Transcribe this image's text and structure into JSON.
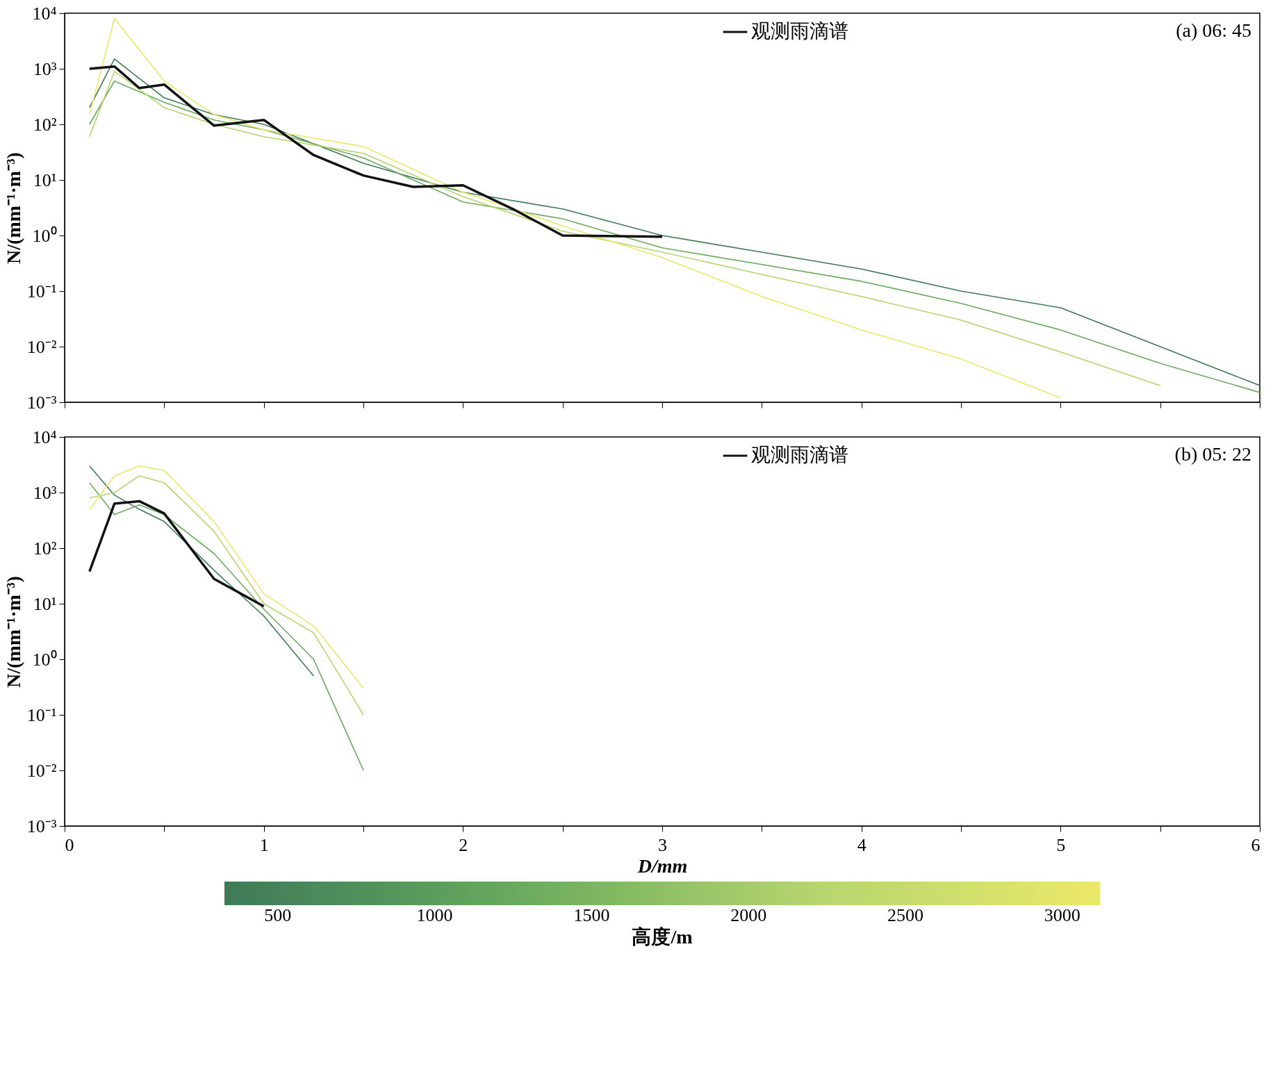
{
  "chart_data": [
    {
      "type": "line",
      "ylabel": "N/(mm⁻¹·m⁻³)",
      "annotations": [
        "(a) 06: 45"
      ],
      "log": "y",
      "grid": false,
      "legend": "top right",
      "tick_labels": "y",
      "line_style": "solid",
      "xlim": [
        0,
        6
      ],
      "xticks": [
        0,
        {
          "value": 0.5,
          "label": null
        },
        1,
        {
          "value": 1.5,
          "label": null
        },
        2,
        {
          "value": 2.5,
          "label": null
        },
        3,
        {
          "value": 3.5,
          "label": null
        },
        4,
        {
          "value": 4.5,
          "label": null
        },
        5,
        {
          "value": 5.5,
          "label": null
        },
        6
      ],
      "ylim": [
        0.001,
        10000
      ],
      "yticks": [
        {
          "value": 0.001,
          "label": "10⁻³"
        },
        {
          "value": 0.01,
          "label": "10⁻²"
        },
        {
          "value": 0.1,
          "label": "10⁻¹"
        },
        {
          "value": 1,
          "label": "10⁰"
        },
        {
          "value": 10,
          "label": "10¹"
        },
        {
          "value": 100,
          "label": "10²"
        },
        {
          "value": 1000,
          "label": "10³"
        },
        {
          "value": 10000,
          "label": "10⁴"
        }
      ],
      "series": [
        {
          "color": "#3f7a57",
          "x": [
            0.125,
            0.25,
            0.5,
            0.75,
            1,
            1.5,
            2,
            2.5,
            3,
            3.5,
            4,
            4.5,
            5,
            5.5,
            6
          ],
          "values": [
            200,
            1500,
            300,
            150,
            100,
            20,
            6,
            3,
            1,
            0.5,
            0.25,
            0.1,
            0.05,
            0.01,
            0.002
          ]
        },
        {
          "color": "#6aaa5e",
          "x": [
            0.125,
            0.25,
            0.5,
            0.75,
            1,
            1.5,
            2,
            2.5,
            3,
            3.5,
            4,
            4.5,
            5,
            5.5,
            6
          ],
          "values": [
            100,
            600,
            250,
            120,
            80,
            25,
            4,
            2,
            0.6,
            0.3,
            0.15,
            0.06,
            0.02,
            0.005,
            0.0015
          ]
        },
        {
          "color": "#b5d46e",
          "x": [
            0.125,
            0.25,
            0.5,
            0.75,
            1,
            1.5,
            2,
            2.5,
            3,
            3.5,
            4,
            4.5,
            5,
            5.5
          ],
          "values": [
            60,
            900,
            200,
            100,
            60,
            30,
            5,
            1.2,
            0.5,
            0.2,
            0.08,
            0.03,
            0.008,
            0.002
          ]
        },
        {
          "color": "#ebe86a",
          "x": [
            0.125,
            0.25,
            0.5,
            0.75,
            1,
            1.5,
            2,
            2.5,
            3,
            3.5,
            4,
            4.5,
            5
          ],
          "values": [
            150,
            8000,
            600,
            150,
            80,
            40,
            6,
            1.5,
            0.4,
            0.08,
            0.02,
            0.006,
            0.0012
          ]
        },
        {
          "name": "观测雨滴谱",
          "color": "#111111",
          "x": [
            0.125,
            0.25,
            0.375,
            0.5,
            0.75,
            1,
            1.25,
            1.5,
            1.75,
            2,
            2.25,
            2.5,
            3
          ],
          "values": [
            1000,
            1100,
            450,
            520,
            95,
            120,
            28,
            12,
            7.5,
            8,
            3,
            1,
            0.95
          ]
        }
      ]
    },
    {
      "type": "line",
      "xlabel": "D/mm",
      "ylabel": "N/(mm⁻¹·m⁻³)",
      "annotations": [
        "(b) 05: 22"
      ],
      "log": "y",
      "grid": false,
      "legend": "top right",
      "line_style": "solid",
      "clabel": "高度/m",
      "clim": [
        330,
        3120
      ],
      "cticks": [
        500,
        1000,
        1500,
        2000,
        2500,
        3000
      ],
      "xlim": [
        0,
        6
      ],
      "xticks": [
        0,
        {
          "value": 0.5,
          "label": null
        },
        1,
        {
          "value": 1.5,
          "label": null
        },
        2,
        {
          "value": 2.5,
          "label": null
        },
        3,
        {
          "value": 3.5,
          "label": null
        },
        4,
        {
          "value": 4.5,
          "label": null
        },
        5,
        {
          "value": 5.5,
          "label": null
        },
        6
      ],
      "ylim": [
        0.001,
        10000
      ],
      "yticks": [
        {
          "value": 0.001,
          "label": "10⁻³"
        },
        {
          "value": 0.01,
          "label": "10⁻²"
        },
        {
          "value": 0.1,
          "label": "10⁻¹"
        },
        {
          "value": 1,
          "label": "10⁰"
        },
        {
          "value": 10,
          "label": "10¹"
        },
        {
          "value": 100,
          "label": "10²"
        },
        {
          "value": 1000,
          "label": "10³"
        },
        {
          "value": 10000,
          "label": "10⁴"
        }
      ],
      "series": [
        {
          "color": "#3f7a57",
          "x": [
            0.125,
            0.25,
            0.375,
            0.5,
            0.75,
            1,
            1.25
          ],
          "values": [
            3000,
            900,
            500,
            300,
            40,
            6,
            0.5
          ]
        },
        {
          "color": "#6aaa5e",
          "x": [
            0.125,
            0.25,
            0.375,
            0.5,
            0.75,
            1,
            1.25,
            1.5
          ],
          "values": [
            1500,
            400,
            600,
            400,
            80,
            8,
            1,
            0.01
          ]
        },
        {
          "color": "#b5d46e",
          "x": [
            0.125,
            0.25,
            0.375,
            0.5,
            0.75,
            1,
            1.25,
            1.5
          ],
          "values": [
            800,
            1000,
            2000,
            1500,
            200,
            10,
            3,
            0.1
          ]
        },
        {
          "color": "#ebe86a",
          "x": [
            0.125,
            0.25,
            0.375,
            0.5,
            0.75,
            1,
            1.25,
            1.5
          ],
          "values": [
            500,
            2000,
            3000,
            2500,
            300,
            15,
            4,
            0.3
          ]
        },
        {
          "name": "观测雨滴谱",
          "color": "#111111",
          "x": [
            0.125,
            0.25,
            0.375,
            0.5,
            0.75,
            1
          ],
          "values": [
            38,
            630,
            700,
            420,
            28,
            9
          ]
        }
      ]
    }
  ]
}
